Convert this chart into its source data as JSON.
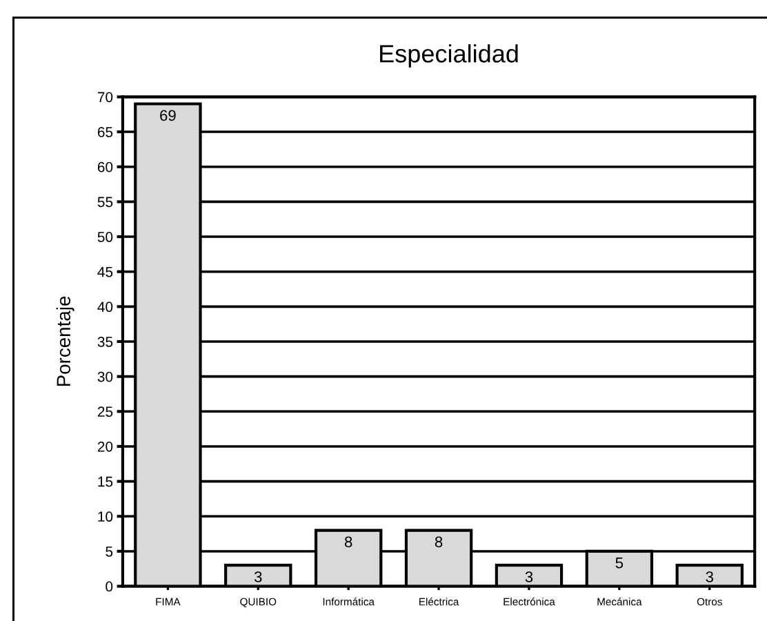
{
  "chart_data": {
    "type": "bar",
    "title": "Especialidad",
    "ylabel": "Porcentaje",
    "categories": [
      "FIMA",
      "QUIBIO",
      "Informática",
      "Eléctrica",
      "Electrónica",
      "Mecánica",
      "Otros"
    ],
    "values": [
      69,
      3,
      8,
      8,
      3,
      5,
      3
    ],
    "color": "#d9d9d9",
    "ylim": [
      0,
      70
    ],
    "yticks": [
      0,
      5,
      10,
      15,
      20,
      25,
      30,
      35,
      40,
      45,
      50,
      55,
      60,
      65,
      70
    ],
    "grid": "y",
    "data_labels": true,
    "legend": false
  }
}
